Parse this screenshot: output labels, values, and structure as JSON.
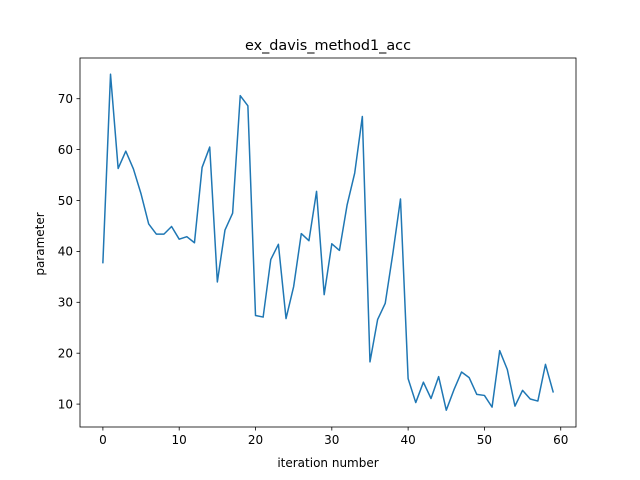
{
  "chart_data": {
    "type": "line",
    "title": "ex_davis_method1_acc",
    "xlabel": "iteration number",
    "ylabel": "parameter",
    "xlim": [
      -3,
      62
    ],
    "ylim": [
      5.5,
      78
    ],
    "xticks": [
      0,
      10,
      20,
      30,
      40,
      50,
      60
    ],
    "yticks": [
      10,
      20,
      30,
      40,
      50,
      60,
      70
    ],
    "grid": false,
    "line_color": "#1f77b4",
    "x": [
      0,
      1,
      2,
      3,
      4,
      5,
      6,
      7,
      8,
      9,
      10,
      11,
      12,
      13,
      14,
      15,
      16,
      17,
      18,
      19,
      20,
      21,
      22,
      23,
      24,
      25,
      26,
      27,
      28,
      29,
      30,
      31,
      32,
      33,
      34,
      35,
      36,
      37,
      38,
      39,
      40,
      41,
      42,
      43,
      44,
      45,
      46,
      47,
      48,
      49,
      50,
      51,
      52,
      53,
      54,
      55,
      56,
      57,
      58,
      59
    ],
    "series": [
      {
        "values": [
          37.8,
          74.8,
          56.3,
          59.7,
          56.2,
          51.3,
          45.4,
          43.4,
          43.4,
          44.9,
          42.4,
          42.9,
          41.7,
          56.5,
          60.5,
          34.0,
          44.2,
          47.5,
          70.6,
          68.6,
          27.4,
          27.1,
          38.4,
          41.4,
          26.8,
          33.1,
          43.5,
          42.1,
          51.8,
          31.5,
          41.5,
          40.2,
          49.1,
          55.4,
          66.5,
          18.3,
          26.6,
          29.8,
          39.6,
          50.3,
          15.0,
          10.3,
          14.3,
          11.1,
          15.4,
          8.8,
          12.8,
          16.3,
          15.2,
          11.9,
          11.7,
          9.4,
          20.5,
          16.8,
          9.6,
          12.7,
          11.0,
          10.6,
          17.8,
          12.4
        ]
      }
    ]
  }
}
